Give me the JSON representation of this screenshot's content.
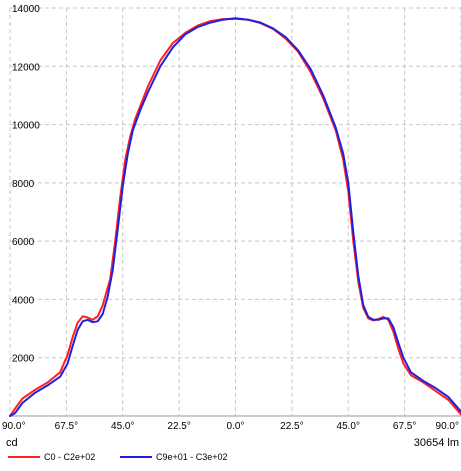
{
  "chart_data": {
    "type": "line",
    "x_tick_labels": [
      "90.0°",
      "67.5°",
      "45.0°",
      "22.5°",
      "0.0°",
      "22.5°",
      "45.0°",
      "67.5°",
      "90.0°"
    ],
    "x_ticks": [
      -90,
      -67.5,
      -45,
      -22.5,
      0,
      22.5,
      45,
      67.5,
      90
    ],
    "xlim": [
      -90,
      90
    ],
    "y_ticks": [
      2000,
      4000,
      6000,
      8000,
      10000,
      12000,
      14000
    ],
    "y_tick_labels": [
      "2000",
      "4000",
      "6000",
      "8000",
      "10000",
      "12000",
      "14000"
    ],
    "ylim": [
      0,
      14000
    ],
    "unit_label": "cd",
    "flux_label": "30654 lm",
    "grid": true,
    "legend_position": "bottom",
    "series": [
      {
        "name": "C0 - C2e+02",
        "color": "#ff2020",
        "points": [
          [
            -90,
            0
          ],
          [
            -88,
            250
          ],
          [
            -85,
            600
          ],
          [
            -80,
            900
          ],
          [
            -75,
            1150
          ],
          [
            -70,
            1500
          ],
          [
            -67,
            2100
          ],
          [
            -65,
            2700
          ],
          [
            -63,
            3200
          ],
          [
            -61,
            3420
          ],
          [
            -59,
            3380
          ],
          [
            -57,
            3300
          ],
          [
            -55,
            3420
          ],
          [
            -53,
            3800
          ],
          [
            -50,
            4700
          ],
          [
            -48,
            6000
          ],
          [
            -46,
            7500
          ],
          [
            -44,
            8800
          ],
          [
            -42,
            9600
          ],
          [
            -40,
            10200
          ],
          [
            -35,
            11300
          ],
          [
            -30,
            12200
          ],
          [
            -25,
            12800
          ],
          [
            -20,
            13150
          ],
          [
            -15,
            13400
          ],
          [
            -10,
            13550
          ],
          [
            -5,
            13620
          ],
          [
            0,
            13630
          ],
          [
            5,
            13600
          ],
          [
            10,
            13480
          ],
          [
            15,
            13280
          ],
          [
            20,
            12950
          ],
          [
            25,
            12500
          ],
          [
            30,
            11800
          ],
          [
            35,
            10900
          ],
          [
            40,
            9800
          ],
          [
            43,
            8800
          ],
          [
            45,
            7700
          ],
          [
            47,
            6000
          ],
          [
            49,
            4600
          ],
          [
            51,
            3700
          ],
          [
            53,
            3350
          ],
          [
            55,
            3280
          ],
          [
            57,
            3330
          ],
          [
            59,
            3400
          ],
          [
            61,
            3300
          ],
          [
            63,
            2900
          ],
          [
            65,
            2300
          ],
          [
            67,
            1800
          ],
          [
            70,
            1400
          ],
          [
            75,
            1150
          ],
          [
            80,
            850
          ],
          [
            85,
            550
          ],
          [
            88,
            250
          ],
          [
            90,
            50
          ]
        ]
      },
      {
        "name": "C9e+01 - C3e+02",
        "color": "#2020e0",
        "points": [
          [
            -90,
            0
          ],
          [
            -88,
            100
          ],
          [
            -85,
            450
          ],
          [
            -80,
            800
          ],
          [
            -75,
            1050
          ],
          [
            -70,
            1350
          ],
          [
            -67,
            1800
          ],
          [
            -65,
            2400
          ],
          [
            -63,
            2950
          ],
          [
            -61,
            3250
          ],
          [
            -59,
            3300
          ],
          [
            -57,
            3220
          ],
          [
            -55,
            3250
          ],
          [
            -53,
            3500
          ],
          [
            -51,
            4100
          ],
          [
            -49,
            5000
          ],
          [
            -47,
            6400
          ],
          [
            -45,
            7900
          ],
          [
            -43,
            9000
          ],
          [
            -41,
            9800
          ],
          [
            -38,
            10500
          ],
          [
            -35,
            11100
          ],
          [
            -30,
            12000
          ],
          [
            -25,
            12650
          ],
          [
            -20,
            13100
          ],
          [
            -15,
            13350
          ],
          [
            -10,
            13500
          ],
          [
            -5,
            13600
          ],
          [
            0,
            13650
          ],
          [
            5,
            13600
          ],
          [
            10,
            13500
          ],
          [
            15,
            13300
          ],
          [
            20,
            13000
          ],
          [
            25,
            12550
          ],
          [
            30,
            11900
          ],
          [
            35,
            11000
          ],
          [
            40,
            9900
          ],
          [
            43,
            9000
          ],
          [
            45,
            8000
          ],
          [
            47,
            6300
          ],
          [
            49,
            4800
          ],
          [
            51,
            3800
          ],
          [
            53,
            3400
          ],
          [
            55,
            3300
          ],
          [
            57,
            3300
          ],
          [
            59,
            3350
          ],
          [
            61,
            3350
          ],
          [
            63,
            3050
          ],
          [
            65,
            2500
          ],
          [
            67,
            2000
          ],
          [
            70,
            1500
          ],
          [
            75,
            1200
          ],
          [
            80,
            950
          ],
          [
            85,
            650
          ],
          [
            88,
            350
          ],
          [
            90,
            150
          ]
        ]
      }
    ]
  }
}
